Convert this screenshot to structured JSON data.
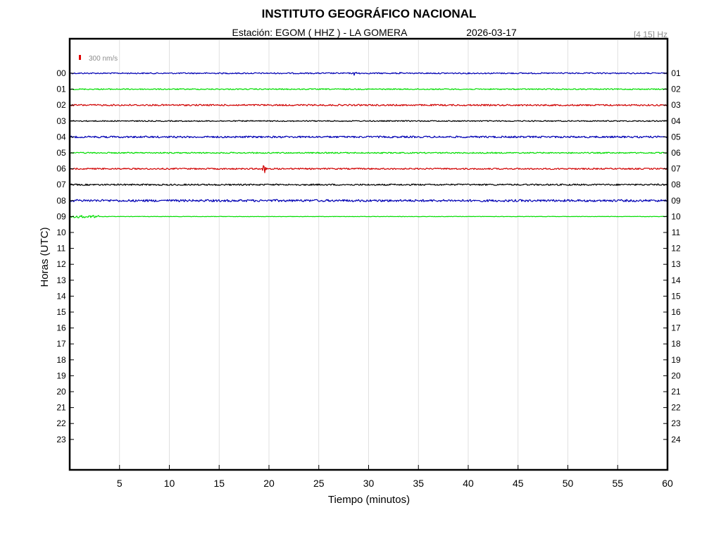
{
  "header": {
    "title": "INSTITUTO GEOGRÁFICO NACIONAL",
    "station_line": "Estación:  EGOM ( HHZ ) - LA GOMERA",
    "date": "2026-03-17",
    "filter": "[4 15] Hz"
  },
  "scale_bar": {
    "label": "300 nm/s",
    "color": "#e00000"
  },
  "chart_data": {
    "type": "line",
    "title": "INSTITUTO GEOGRÁFICO NACIONAL",
    "xlabel": "Tiempo (minutos)",
    "ylabel": "Horas (UTC)",
    "xlim": [
      0,
      60
    ],
    "x_ticks": [
      5,
      10,
      15,
      20,
      25,
      30,
      35,
      40,
      45,
      50,
      55,
      60
    ],
    "grid_x": true,
    "left_labels": [
      "00",
      "01",
      "02",
      "03",
      "04",
      "05",
      "06",
      "07",
      "08",
      "09",
      "10",
      "11",
      "12",
      "13",
      "14",
      "15",
      "16",
      "17",
      "18",
      "19",
      "20",
      "21",
      "22",
      "23"
    ],
    "right_labels": [
      "01",
      "02",
      "03",
      "04",
      "05",
      "06",
      "07",
      "08",
      "09",
      "10",
      "11",
      "12",
      "13",
      "14",
      "15",
      "16",
      "17",
      "18",
      "19",
      "20",
      "21",
      "22",
      "23",
      "24"
    ],
    "series": [
      {
        "hour": "00",
        "color": "#0000b4",
        "end_min": 60,
        "noise": 0.9,
        "events": [
          {
            "t": 28.6,
            "amp": 5
          },
          {
            "t": 33.1,
            "amp": 2
          },
          {
            "t": 49.3,
            "amp": 2
          }
        ]
      },
      {
        "hour": "01",
        "color": "#00dd00",
        "end_min": 60,
        "noise": 0.8,
        "events": []
      },
      {
        "hour": "02",
        "color": "#d00000",
        "end_min": 60,
        "noise": 1.1,
        "events": []
      },
      {
        "hour": "03",
        "color": "#000000",
        "end_min": 60,
        "noise": 0.8,
        "events": []
      },
      {
        "hour": "04",
        "color": "#0000b4",
        "end_min": 60,
        "noise": 1.3,
        "events": []
      },
      {
        "hour": "05",
        "color": "#00dd00",
        "end_min": 60,
        "noise": 0.9,
        "events": []
      },
      {
        "hour": "06",
        "color": "#d00000",
        "end_min": 60,
        "noise": 1.0,
        "events": [
          {
            "t": 19.4,
            "amp": 15
          }
        ]
      },
      {
        "hour": "07",
        "color": "#000000",
        "end_min": 60,
        "noise": 1.1,
        "events": []
      },
      {
        "hour": "08",
        "color": "#0000b4",
        "end_min": 60,
        "noise": 1.6,
        "events": []
      },
      {
        "hour": "09",
        "color": "#00dd00",
        "end_min": 60,
        "noise": 0.3,
        "events": [],
        "burst_end_min": 2.9
      }
    ]
  }
}
